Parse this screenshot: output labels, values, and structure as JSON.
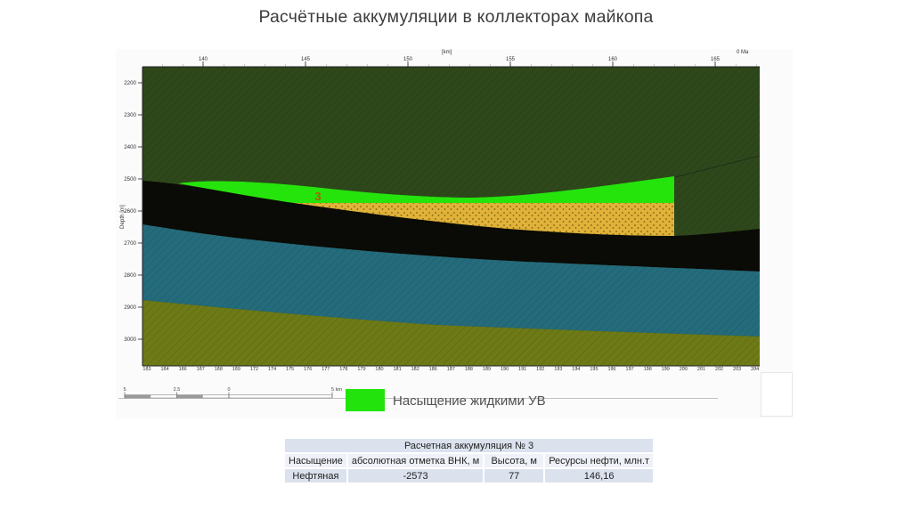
{
  "slide_title": "Расчётные аккумуляции в коллекторах майкопа",
  "section": {
    "top_axis": {
      "unit": "[km]",
      "age": "0 Ma",
      "ticks": [
        "140",
        "145",
        "150",
        "155",
        "160",
        "165"
      ]
    },
    "depth_axis": {
      "label": "Depth [m]",
      "ticks": [
        "2200",
        "2300",
        "2400",
        "2500",
        "2600",
        "2700",
        "2800",
        "2900",
        "3000"
      ]
    },
    "trace_axis": {
      "ticks": [
        "163",
        "164",
        "166",
        "167",
        "168",
        "169",
        "172",
        "174",
        "175",
        "176",
        "177",
        "178",
        "179",
        "180",
        "181",
        "182",
        "186",
        "187",
        "188",
        "189",
        "190",
        "191",
        "192",
        "193",
        "194",
        "195",
        "196",
        "197",
        "198",
        "199",
        "200",
        "201",
        "202",
        "203",
        "204"
      ]
    },
    "accumulation_number": "3",
    "scalebar": {
      "labels": [
        "5",
        "2.5",
        "0",
        "5 km"
      ]
    },
    "legend": {
      "label": "Насыщение жидкими УВ",
      "swatch_color": "#22e30b"
    },
    "colors": {
      "overburden_green": "#2e481b",
      "accumulation_green": "#25e40c",
      "reservoir_yellow": "#e0b23a",
      "seal_black": "#0a0a06",
      "aquifer_teal": "#246b7c",
      "basement_olive": "#6d7a16",
      "accumulation_label": "#a86000"
    }
  },
  "table": {
    "title": "Расчетная аккумуляция № 3",
    "headers": [
      "Насыщение",
      "абсолютная отметка ВНК, м",
      "Высота, м",
      "Ресурсы нефти, млн.т"
    ],
    "rows": [
      [
        "Нефтяная",
        "-2573",
        "77",
        "146,16"
      ]
    ]
  }
}
